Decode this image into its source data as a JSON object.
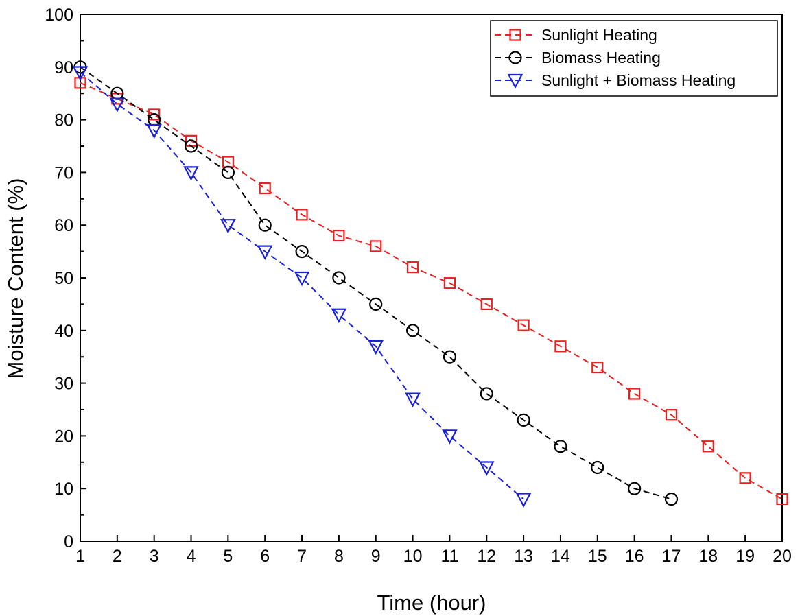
{
  "chart_data": {
    "type": "line",
    "xlabel": "Time (hour)",
    "ylabel": "Moisture Content (%)",
    "xlim": [
      1,
      20
    ],
    "ylim": [
      0,
      100
    ],
    "x_ticks": [
      1,
      2,
      3,
      4,
      5,
      6,
      7,
      8,
      9,
      10,
      11,
      12,
      13,
      14,
      15,
      16,
      17,
      18,
      19,
      20
    ],
    "y_ticks": [
      0,
      10,
      20,
      30,
      40,
      50,
      60,
      70,
      80,
      90,
      100
    ],
    "grid": false,
    "legend_position": "top-right",
    "series": [
      {
        "name": "Sunlight Heating",
        "color": "#e8201e",
        "marker": "square",
        "line_style": "dashed",
        "x": [
          1,
          2,
          3,
          4,
          5,
          6,
          7,
          8,
          9,
          10,
          11,
          12,
          13,
          14,
          15,
          16,
          17,
          18,
          19,
          20
        ],
        "y": [
          87,
          84,
          81,
          76,
          72,
          67,
          62,
          58,
          56,
          52,
          49,
          45,
          41,
          37,
          33,
          28,
          24,
          18,
          12,
          8
        ]
      },
      {
        "name": "Biomass Heating",
        "color": "#000000",
        "marker": "circle",
        "line_style": "dashed",
        "x": [
          1,
          2,
          3,
          4,
          5,
          6,
          7,
          8,
          9,
          10,
          11,
          12,
          13,
          14,
          15,
          16,
          17
        ],
        "y": [
          90,
          85,
          80,
          75,
          70,
          60,
          55,
          50,
          45,
          40,
          35,
          28,
          23,
          18,
          14,
          10,
          8
        ]
      },
      {
        "name": "Sunlight + Biomass Heating",
        "color": "#1a22d8",
        "marker": "triangle-down",
        "line_style": "dashed",
        "x": [
          1,
          2,
          3,
          4,
          5,
          6,
          7,
          8,
          9,
          10,
          11,
          12,
          13
        ],
        "y": [
          89,
          83,
          78,
          70,
          60,
          55,
          50,
          43,
          37,
          27,
          20,
          14,
          8
        ]
      }
    ]
  }
}
